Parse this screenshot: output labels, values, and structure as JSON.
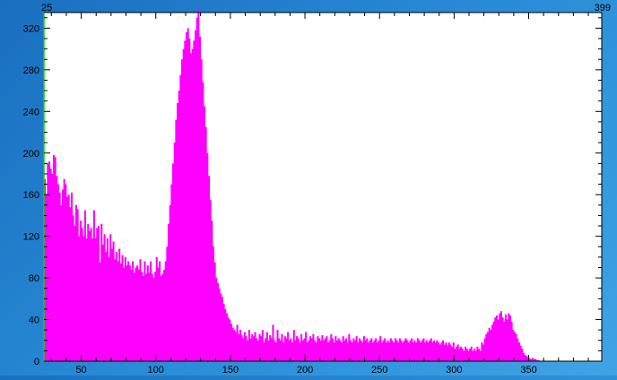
{
  "chart_data": {
    "type": "bar",
    "title": "",
    "xlabel": "",
    "ylabel": "",
    "range_labels": {
      "start": "25",
      "end": "399"
    },
    "xlim": [
      25,
      399
    ],
    "ylim": [
      0,
      335
    ],
    "x_ticks": [
      50,
      100,
      150,
      200,
      250,
      300,
      350
    ],
    "y_ticks": [
      0,
      40,
      80,
      120,
      160,
      200,
      240,
      280,
      320
    ],
    "grid": false,
    "legend": "none",
    "bar_color": "#ff00ff",
    "series": [
      {
        "x_start": 25,
        "bin_width": 1,
        "values": [
          175,
          160,
          190,
          192,
          185,
          180,
          198,
          196,
          178,
          170,
          162,
          150,
          165,
          175,
          170,
          158,
          160,
          148,
          162,
          140,
          130,
          150,
          146,
          120,
          135,
          128,
          120,
          145,
          118,
          132,
          125,
          128,
          118,
          145,
          118,
          128,
          130,
          95,
          132,
          112,
          122,
          105,
          118,
          100,
          122,
          108,
          115,
          98,
          105,
          96,
          108,
          94,
          102,
          90,
          100,
          92,
          96,
          92,
          88,
          96,
          85,
          90,
          92,
          88,
          98,
          86,
          82,
          96,
          84,
          92,
          85,
          96,
          84,
          80,
          86,
          100,
          90,
          96,
          82,
          84,
          88,
          96,
          110,
          132,
          150,
          170,
          190,
          210,
          232,
          248,
          260,
          275,
          290,
          300,
          308,
          316,
          320,
          310,
          296,
          300,
          308,
          318,
          330,
          338,
          312,
          290,
          268,
          245,
          225,
          200,
          178,
          155,
          135,
          110,
          95,
          80,
          75,
          70,
          65,
          62,
          55,
          50,
          46,
          42,
          40,
          36,
          32,
          30,
          28,
          35,
          26,
          30,
          25,
          22,
          28,
          24,
          20,
          30,
          22,
          26,
          24,
          28,
          22,
          20,
          26,
          24,
          30,
          18,
          22,
          28,
          20,
          25,
          22,
          35,
          20,
          18,
          30,
          22,
          20,
          26,
          18,
          24,
          22,
          28,
          20,
          22,
          18,
          30,
          20,
          24,
          22,
          18,
          26,
          20,
          22,
          28,
          18,
          20,
          24,
          22,
          26,
          20,
          18,
          24,
          22,
          20,
          25,
          20,
          22,
          24,
          18,
          20,
          26,
          22,
          18,
          24,
          20,
          22,
          20,
          18,
          24,
          20,
          22,
          18,
          26,
          20,
          18,
          22,
          20,
          24,
          18,
          22,
          20,
          18,
          24,
          20,
          22,
          18,
          20,
          22,
          18,
          20,
          22,
          18,
          20,
          24,
          18,
          20,
          22,
          18,
          20,
          18,
          22,
          20,
          18,
          22,
          20,
          18,
          22,
          20,
          18,
          20,
          22,
          20,
          18,
          20,
          22,
          18,
          20,
          18,
          22,
          20,
          18,
          20,
          22,
          18,
          20,
          18,
          20,
          22,
          18,
          20,
          18,
          20,
          18,
          16,
          18,
          20,
          16,
          18,
          15,
          18,
          16,
          14,
          18,
          12,
          14,
          16,
          12,
          14,
          12,
          10,
          14,
          12,
          10,
          12,
          14,
          10,
          12,
          10,
          14,
          12,
          10,
          18,
          16,
          22,
          26,
          28,
          32,
          30,
          35,
          38,
          42,
          44,
          40,
          46,
          48,
          42,
          38,
          45,
          40,
          46,
          44,
          38,
          30,
          28,
          26,
          22,
          18,
          15,
          12,
          8,
          6,
          5,
          4,
          3,
          2,
          3,
          2,
          2,
          1,
          1,
          0,
          0,
          0,
          0,
          0,
          0,
          0,
          0,
          0,
          0,
          0,
          0,
          0,
          0,
          0,
          0,
          0,
          0,
          0,
          0,
          0,
          0,
          0,
          0,
          0,
          0,
          0,
          0,
          0,
          0,
          0,
          0,
          0,
          0,
          0,
          0,
          0,
          0,
          0,
          0,
          0,
          0,
          0
        ]
      }
    ]
  }
}
